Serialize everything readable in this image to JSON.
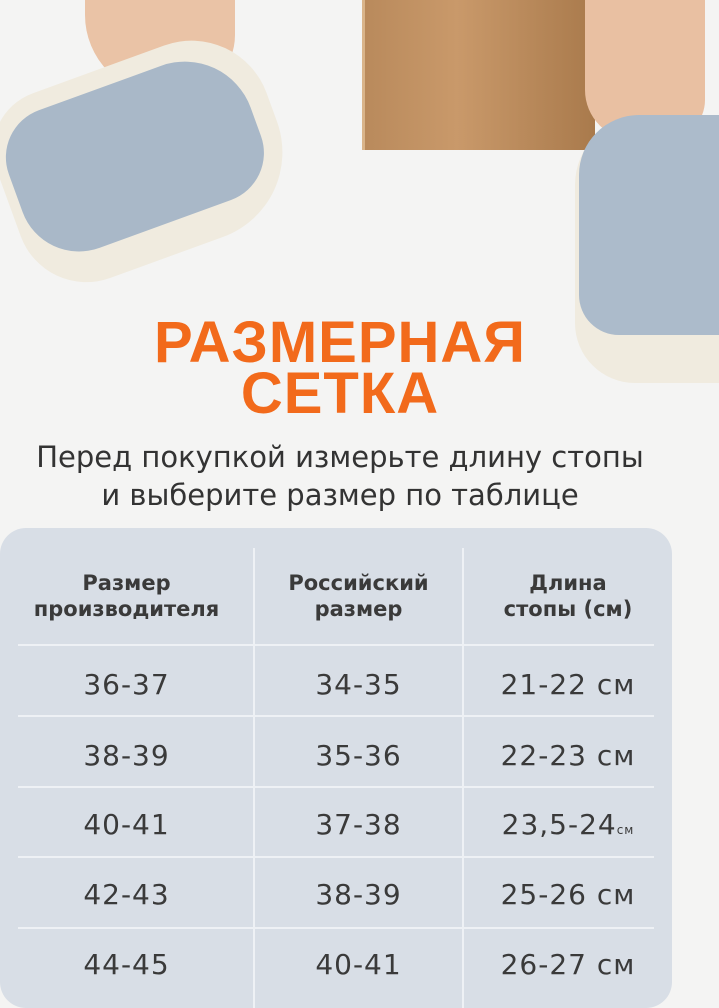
{
  "title": {
    "line1": "РАЗМЕРНАЯ",
    "line2": "СЕТКА"
  },
  "subtitle": {
    "line1": "Перед покупкой измерьте длину стопы",
    "line2": "и выберите размер по таблице"
  },
  "accent_color": "#f26a1b",
  "table": {
    "headers": [
      {
        "line1": "Размер",
        "line2": "производителя"
      },
      {
        "line1": "Российский",
        "line2": "размер"
      },
      {
        "line1": "Длина",
        "line2": "стопы (см)"
      }
    ],
    "rows": [
      {
        "manufacturer": "36-37",
        "russian": "34-35",
        "length": "21-22 см",
        "unit": ""
      },
      {
        "manufacturer": "38-39",
        "russian": "35-36",
        "length": "22-23 см",
        "unit": ""
      },
      {
        "manufacturer": "40-41",
        "russian": "37-38",
        "length": "23,5-24",
        "unit": "см"
      },
      {
        "manufacturer": "42-43",
        "russian": "38-39",
        "length": "25-26 см",
        "unit": ""
      },
      {
        "manufacturer": "44-45",
        "russian": "40-41",
        "length": "26-27 см",
        "unit": ""
      }
    ]
  }
}
